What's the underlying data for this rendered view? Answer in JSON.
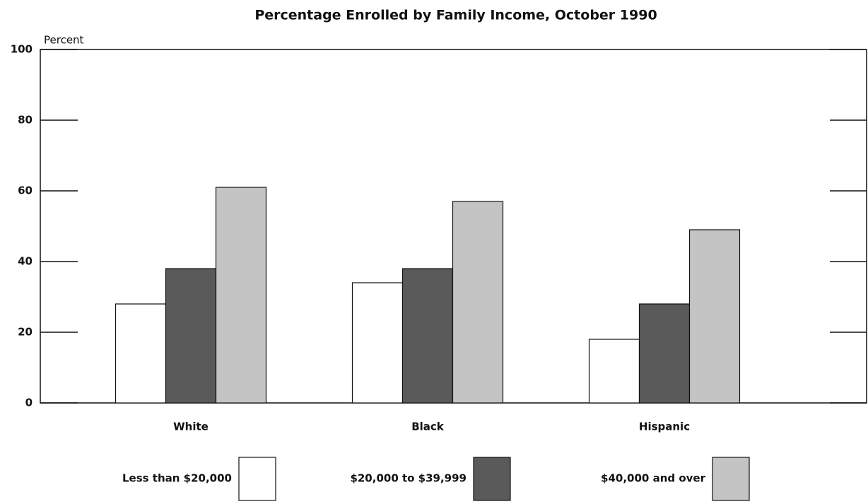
{
  "chart_data": {
    "type": "bar",
    "title": "Percentage Enrolled by Family Income, October 1990",
    "y_label": "Percent",
    "categories": [
      "White",
      "Black",
      "Hispanic"
    ],
    "series": [
      {
        "name": "Less than $20,000",
        "color": "#ffffff",
        "values": [
          28,
          34,
          18
        ]
      },
      {
        "name": "$20,000 to $39,999",
        "color": "#5a5a5a",
        "values": [
          38,
          38,
          28
        ]
      },
      {
        "name": "$40,000 and over",
        "color": "#c4c4c4",
        "values": [
          61,
          57,
          49
        ]
      }
    ],
    "ylim": [
      0,
      100
    ],
    "yticks": [
      0,
      20,
      40,
      60,
      80,
      100
    ]
  }
}
